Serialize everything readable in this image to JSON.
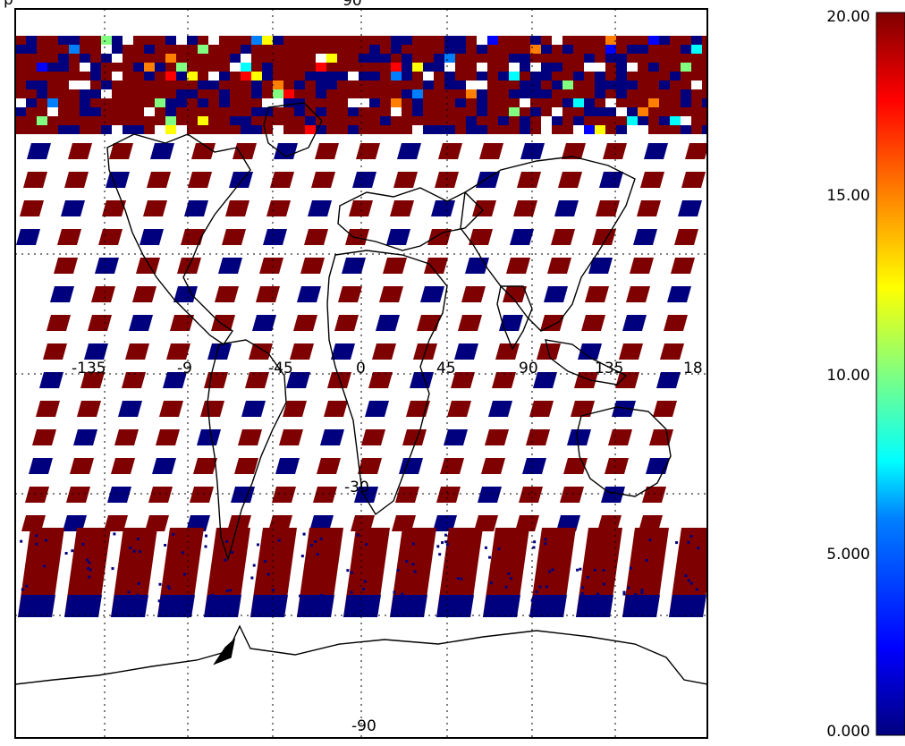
{
  "map": {
    "top_left_label": "p",
    "top_center_label": "90",
    "bottom_center_label": "-90",
    "longitude_labels": [
      "-135",
      "-9",
      "-45",
      "0",
      "45",
      "90",
      "135",
      "18"
    ],
    "latitude_labels": [
      "-30"
    ]
  },
  "colorbar": {
    "min": 0.0,
    "max": 20.0,
    "tick_labels": [
      "20.00",
      "15.00",
      "10.00",
      "5.000",
      "0.000"
    ],
    "tick_values": [
      20,
      15,
      10,
      5,
      0
    ],
    "colormap": [
      "#00007f",
      "#0000ff",
      "#0080ff",
      "#00ffff",
      "#80ff80",
      "#ffff00",
      "#ff8000",
      "#ff0000",
      "#7f0000"
    ]
  },
  "colors": {
    "high": "#7f0000",
    "low": "#00007f",
    "frame": "#000000",
    "grid": "#000000",
    "background": "#ffffff"
  }
}
